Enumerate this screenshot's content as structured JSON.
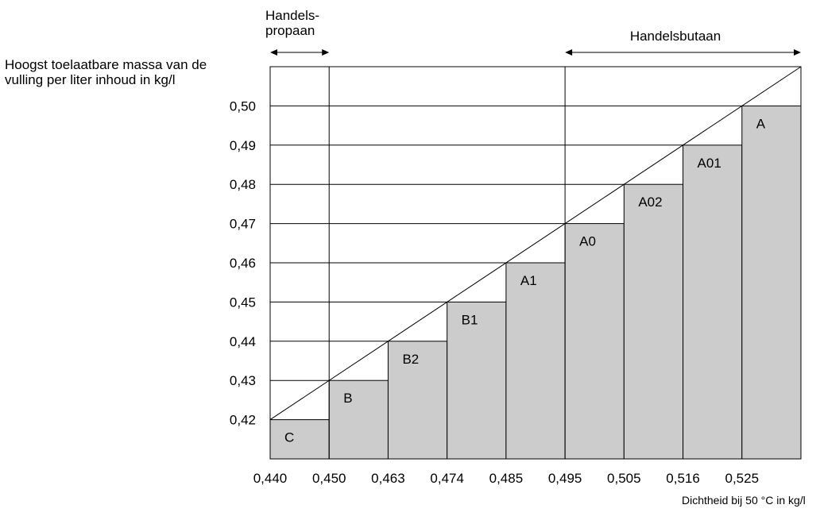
{
  "chart_data": {
    "type": "bar",
    "title": "",
    "ylabel": "Hoogst toelaatbare massa van de vulling per liter inhoud in kg/l",
    "xlabel": "Dichtheid bij 50 °C in kg/l",
    "x_ticks": [
      "0,440",
      "0,450",
      "0,463",
      "0,474",
      "0,485",
      "0,495",
      "0,505",
      "0,516",
      "0,525"
    ],
    "y_ticks": [
      "0,42",
      "0,43",
      "0,44",
      "0,45",
      "0,46",
      "0,47",
      "0,48",
      "0,49",
      "0,50"
    ],
    "ylim": [
      0.41,
      0.51
    ],
    "categories": [
      "C",
      "B",
      "B2",
      "B1",
      "A1",
      "A0",
      "A02",
      "A01",
      "A"
    ],
    "values": [
      0.42,
      0.43,
      0.44,
      0.45,
      0.46,
      0.47,
      0.48,
      0.49,
      0.5
    ],
    "bar_color": "#cccccc",
    "grid": true,
    "regions": [
      {
        "label": "Handels-\npropaan",
        "from": "0,440",
        "to": "0,450"
      },
      {
        "label": "Handelsbutaan",
        "from": "0,495",
        "to": "end"
      }
    ]
  }
}
